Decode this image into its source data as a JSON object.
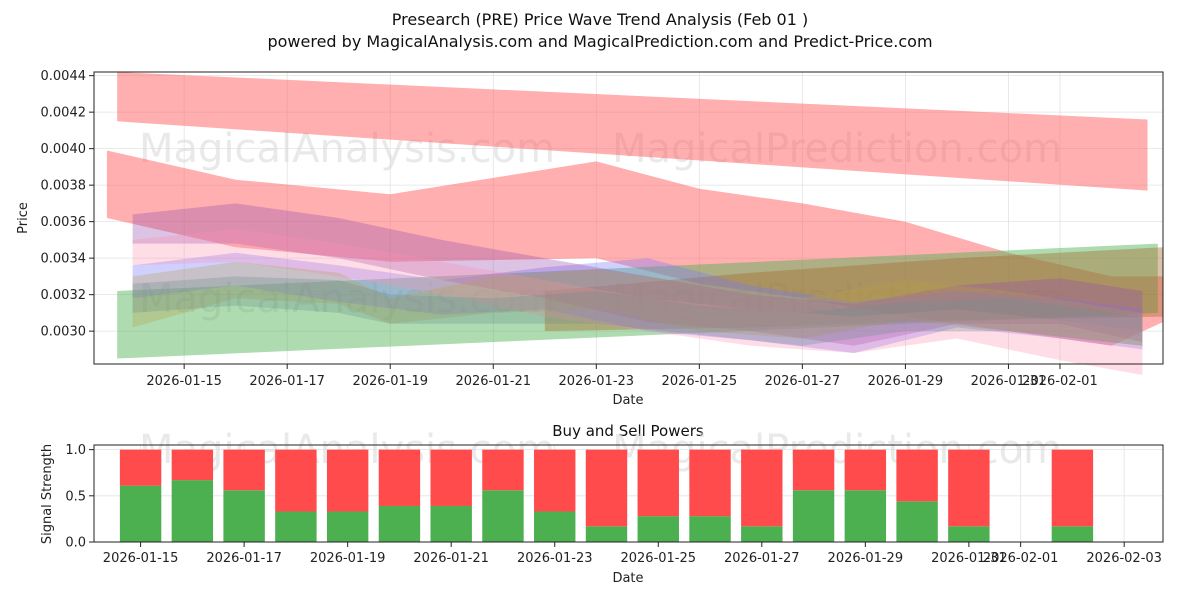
{
  "title_line1": "Presearch (PRE) Price Wave Trend Analysis (Feb 01 )",
  "title_line2": "powered by MagicalAnalysis.com and MagicalPrediction.com and Predict-Price.com",
  "watermark_left": "MagicalAnalysis.com",
  "watermark_right": "MagicalPrediction.com",
  "chart_data": [
    {
      "type": "area",
      "title": "",
      "xlabel": "Date",
      "ylabel": "Price",
      "ylim": [
        0.00282,
        0.00442
      ],
      "xlim_days": [
        -0.75,
        20.0
      ],
      "x_ticks": [
        "2026-01-15",
        "2026-01-17",
        "2026-01-19",
        "2026-01-21",
        "2026-01-23",
        "2026-01-25",
        "2026-01-27",
        "2026-01-29",
        "2026-01-31",
        "2026-02-01"
      ],
      "y_ticks": [
        "0.0030",
        "0.0032",
        "0.0034",
        "0.0036",
        "0.0038",
        "0.0040",
        "0.0042",
        "0.0044"
      ],
      "grid": true,
      "x_unit": "days since 2026-01-14",
      "series": [
        {
          "name": "red upper band",
          "color": "#ff6060",
          "opacity": 0.5,
          "x": [
            -0.3,
            19.7
          ],
          "upper": [
            0.00442,
            0.00416
          ],
          "lower": [
            0.00415,
            0.00377
          ]
        },
        {
          "name": "red falling band",
          "color": "#ff6060",
          "opacity": 0.5,
          "x": [
            -0.5,
            2,
            5,
            9,
            11,
            13,
            15,
            17,
            19,
            20.0
          ],
          "upper": [
            0.00399,
            0.00383,
            0.00375,
            0.00393,
            0.00378,
            0.0037,
            0.0036,
            0.00343,
            0.0033,
            0.0033
          ],
          "lower": [
            0.00362,
            0.00346,
            0.00338,
            0.0034,
            0.00326,
            0.00318,
            0.00308,
            0.003,
            0.00292,
            0.00305
          ]
        },
        {
          "name": "green rising band",
          "color": "#4caf50",
          "opacity": 0.45,
          "x": [
            -0.3,
            19.9
          ],
          "upper": [
            0.00322,
            0.00348
          ],
          "lower": [
            0.00285,
            0.0031
          ]
        },
        {
          "name": "brown rising band",
          "color": "#a5682a",
          "opacity": 0.4,
          "x": [
            8,
            12,
            16,
            20.0
          ],
          "upper": [
            0.00322,
            0.00332,
            0.0034,
            0.00346
          ],
          "lower": [
            0.003,
            0.00302,
            0.00306,
            0.00308
          ]
        },
        {
          "name": "blue wave band",
          "color": "#7777ff",
          "opacity": 0.35,
          "x": [
            0,
            2,
            4,
            6,
            8,
            10,
            12,
            14,
            16,
            18,
            19.6
          ],
          "upper": [
            0.00336,
            0.00343,
            0.00336,
            0.00328,
            0.00335,
            0.0034,
            0.00325,
            0.00316,
            0.00322,
            0.00318,
            0.00312
          ],
          "lower": [
            0.00318,
            0.00325,
            0.00316,
            0.00309,
            0.00312,
            0.003,
            0.00295,
            0.00288,
            0.00302,
            0.00296,
            0.0029
          ]
        },
        {
          "name": "purple wave band",
          "color": "#9c4fb0",
          "opacity": 0.35,
          "x": [
            0,
            2,
            4,
            6,
            8,
            10,
            12,
            14,
            16,
            18,
            19.6
          ],
          "upper": [
            0.00364,
            0.0037,
            0.00362,
            0.0035,
            0.0034,
            0.0033,
            0.0032,
            0.00315,
            0.00325,
            0.00329,
            0.00322
          ],
          "lower": [
            0.00348,
            0.00348,
            0.0034,
            0.00328,
            0.00318,
            0.00305,
            0.003,
            0.00292,
            0.00304,
            0.00304,
            0.00294
          ]
        },
        {
          "name": "pink wave band",
          "color": "#ff8fb0",
          "opacity": 0.3,
          "x": [
            0,
            2,
            4,
            6,
            8,
            10,
            12,
            14,
            16,
            18,
            19.6
          ],
          "upper": [
            0.0035,
            0.00356,
            0.00348,
            0.00338,
            0.00328,
            0.00318,
            0.00312,
            0.00308,
            0.00312,
            0.00306,
            0.003
          ],
          "lower": [
            0.00336,
            0.00338,
            0.0033,
            0.0032,
            0.00308,
            0.003,
            0.00292,
            0.00288,
            0.00296,
            0.00284,
            0.00276
          ]
        },
        {
          "name": "olive wave band",
          "color": "#b9a04a",
          "opacity": 0.3,
          "x": [
            0,
            2,
            4,
            5,
            7,
            9,
            11,
            13,
            15,
            17,
            19.6
          ],
          "upper": [
            0.0033,
            0.00338,
            0.00332,
            0.00318,
            0.0033,
            0.00334,
            0.00326,
            0.00318,
            0.00328,
            0.00322,
            0.0031
          ],
          "lower": [
            0.00302,
            0.00318,
            0.00315,
            0.00304,
            0.0031,
            0.00312,
            0.003,
            0.00296,
            0.00306,
            0.003,
            0.00292
          ]
        },
        {
          "name": "grey-teal wave band",
          "color": "#6b8e8e",
          "opacity": 0.3,
          "x": [
            0,
            2,
            4,
            5,
            7,
            9,
            11,
            13,
            15,
            17,
            19.6
          ],
          "upper": [
            0.00326,
            0.0033,
            0.00328,
            0.0032,
            0.00318,
            0.00322,
            0.00314,
            0.0031,
            0.00316,
            0.00318,
            0.00308
          ],
          "lower": [
            0.0031,
            0.00314,
            0.0031,
            0.00304,
            0.00304,
            0.00304,
            0.00298,
            0.00292,
            0.003,
            0.003,
            0.00292
          ]
        }
      ]
    },
    {
      "type": "bar",
      "title": "Buy and Sell Powers",
      "xlabel": "Date",
      "ylabel": "Signal Strength",
      "ylim": [
        0,
        1.05
      ],
      "x_ticks": [
        "2026-01-15",
        "2026-01-17",
        "2026-01-19",
        "2026-01-21",
        "2026-01-23",
        "2026-01-25",
        "2026-01-27",
        "2026-01-29",
        "2026-01-31",
        "2026-02-01",
        "2026-02-03"
      ],
      "y_ticks": [
        "0.0",
        "0.5",
        "1.0"
      ],
      "categories": [
        "2026-01-15",
        "2026-01-16",
        "2026-01-17",
        "2026-01-18",
        "2026-01-19",
        "2026-01-20",
        "2026-01-21",
        "2026-01-22",
        "2026-01-23",
        "2026-01-24",
        "2026-01-25",
        "2026-01-26",
        "2026-01-27",
        "2026-01-28",
        "2026-01-29",
        "2026-01-30",
        "2026-01-31",
        "2026-02-02"
      ],
      "series": [
        {
          "name": "Buy",
          "color": "#4caf50",
          "values": [
            0.61,
            0.67,
            0.56,
            0.33,
            0.33,
            0.39,
            0.39,
            0.56,
            0.33,
            0.17,
            0.28,
            0.28,
            0.17,
            0.56,
            0.56,
            0.44,
            0.17,
            0.17
          ]
        },
        {
          "name": "Sell",
          "color": "#ff4b4b",
          "values": [
            0.39,
            0.33,
            0.44,
            0.67,
            0.67,
            0.61,
            0.61,
            0.44,
            0.67,
            0.83,
            0.72,
            0.72,
            0.83,
            0.44,
            0.44,
            0.56,
            0.83,
            0.83
          ]
        }
      ]
    }
  ]
}
